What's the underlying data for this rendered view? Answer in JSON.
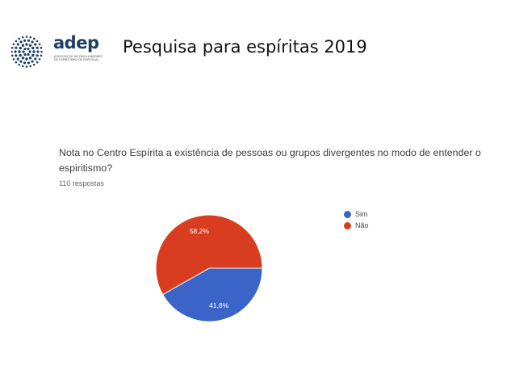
{
  "header": {
    "logo": {
      "word": "adep",
      "subtitle": "Associação de Divulgadores de Espiritismo de Portugal",
      "color": "#1f3f66"
    },
    "title": "Pesquisa para espíritas  2019"
  },
  "question": "Nota no Centro Espírita a existência de pessoas ou grupos divergentes no modo de entender o espiritismo?",
  "responses_label": "110 respostas",
  "chart_data": {
    "type": "pie",
    "total_responses": 110,
    "slices": [
      {
        "label": "Sim",
        "value": 41.8,
        "value_label": "41,8%",
        "color": "#3b64c8"
      },
      {
        "label": "Não",
        "value": 58.2,
        "value_label": "58,2%",
        "color": "#d93d20"
      }
    ],
    "legend": {
      "position": "right",
      "entries": [
        "Sim",
        "Não"
      ]
    }
  }
}
